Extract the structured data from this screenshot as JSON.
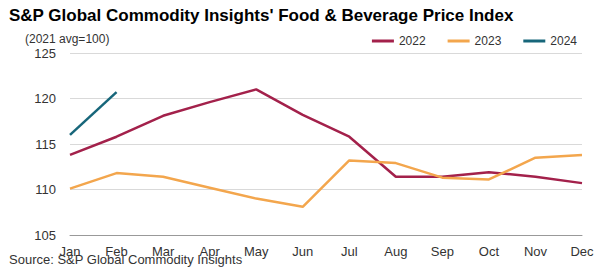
{
  "chart_data": {
    "type": "line",
    "title": "S&P Global Commodity Insights' Food & Beverage Price Index",
    "subtitle": "(2021 avg=100)",
    "source": "Source: S&P Global Commodity Insights",
    "categories": [
      "Jan",
      "Feb",
      "Mar",
      "Apr",
      "May",
      "Jun",
      "Jul",
      "Aug",
      "Sep",
      "Oct",
      "Nov",
      "Dec"
    ],
    "series": [
      {
        "name": "2022",
        "color": "#a3214b",
        "values": [
          113.8,
          115.8,
          118.1,
          119.6,
          121.0,
          118.2,
          115.8,
          111.4,
          111.4,
          111.9,
          111.4,
          110.7
        ]
      },
      {
        "name": "2023",
        "color": "#f3a64d",
        "values": [
          110.1,
          111.8,
          111.4,
          110.2,
          109.0,
          108.1,
          113.2,
          112.9,
          111.3,
          111.1,
          113.5,
          113.8
        ]
      },
      {
        "name": "2024",
        "color": "#17667a",
        "values": [
          116.0,
          120.7,
          null,
          null,
          null,
          null,
          null,
          null,
          null,
          null,
          null,
          null
        ]
      }
    ],
    "ylim": [
      105,
      125
    ],
    "yticks": [
      105,
      110,
      115,
      120,
      125
    ],
    "grid": true,
    "legend": "top-right"
  }
}
